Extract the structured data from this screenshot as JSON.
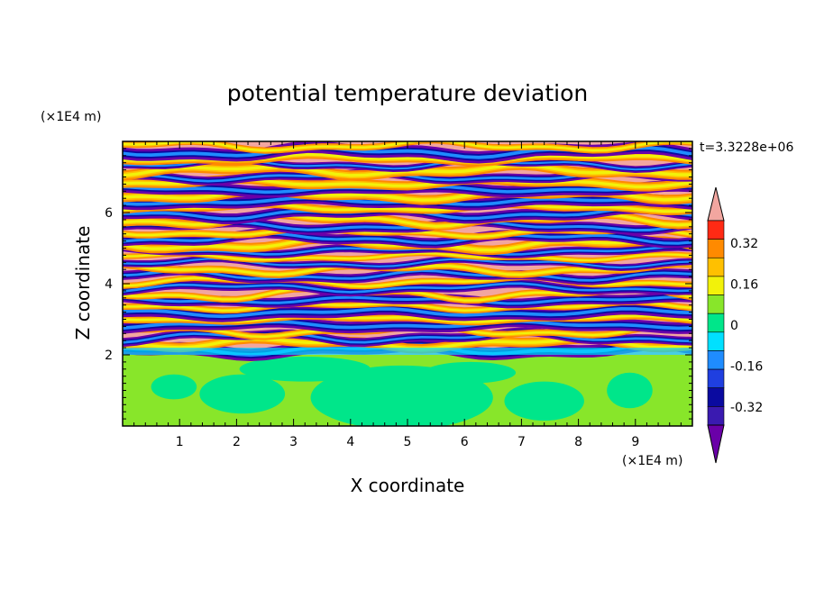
{
  "chart_data": {
    "type": "heatmap",
    "title": "potential temperature deviation",
    "xlabel": "X coordinate",
    "ylabel": "Z coordinate",
    "x_unit": "(×1E4 m)",
    "y_unit": "(×1E4 m)",
    "time_label": "t=3.3228e+06",
    "xlim": [
      0,
      10
    ],
    "ylim": [
      0,
      8
    ],
    "x_ticks": [
      "1",
      "2",
      "3",
      "4",
      "5",
      "6",
      "7",
      "8",
      "9"
    ],
    "y_ticks": [
      "2",
      "4",
      "6"
    ],
    "colorbar": {
      "levels": [
        -0.48,
        -0.4,
        -0.32,
        -0.24,
        -0.16,
        -0.08,
        0,
        0.08,
        0.16,
        0.24,
        0.32,
        0.4,
        0.48
      ],
      "colors": [
        "#6a00a8",
        "#3a1ab0",
        "#0a0aa0",
        "#1f3fe0",
        "#1f8cff",
        "#00e0ff",
        "#00e68a",
        "#88e62a",
        "#f2f20a",
        "#ffc000",
        "#ff8a00",
        "#ff2a14",
        "#f2a6a0"
      ],
      "tick_labels": [
        "0.32",
        "0.16",
        "0",
        "-0.16",
        "-0.32"
      ]
    },
    "field_description_lower": "z < 2: values near 0 (green / light-green patches)",
    "field_description_upper": "z 2-8: banded layers alternating between strongly negative (purple/blue) and strongly positive (pink/red)"
  }
}
